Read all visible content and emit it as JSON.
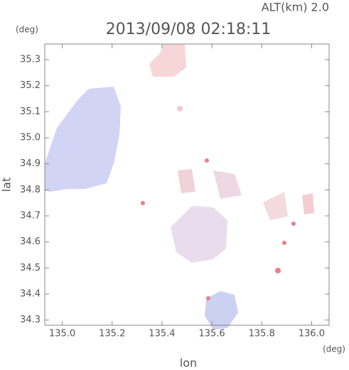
{
  "chart_data": {
    "type": "map",
    "title": "2013/09/08 02:18:11",
    "subtitle": "ALT(km) 2.0",
    "x_label": "lon",
    "y_label": "lat",
    "x_unit": "(deg)",
    "y_unit": "(deg)",
    "xlim": [
      134.93,
      136.07
    ],
    "ylim": [
      34.28,
      35.36
    ],
    "xticks": [
      {
        "value": 135.0,
        "label": "135.0"
      },
      135.2,
      135.4,
      135.6,
      135.8,
      {
        "value": 136.0,
        "label": "136.0"
      }
    ],
    "yticks": [
      34.3,
      34.4,
      34.5,
      34.6,
      34.7,
      34.8,
      34.9,
      {
        "value": 35.0,
        "label": "35.0"
      },
      35.1,
      35.2,
      35.3
    ]
  }
}
